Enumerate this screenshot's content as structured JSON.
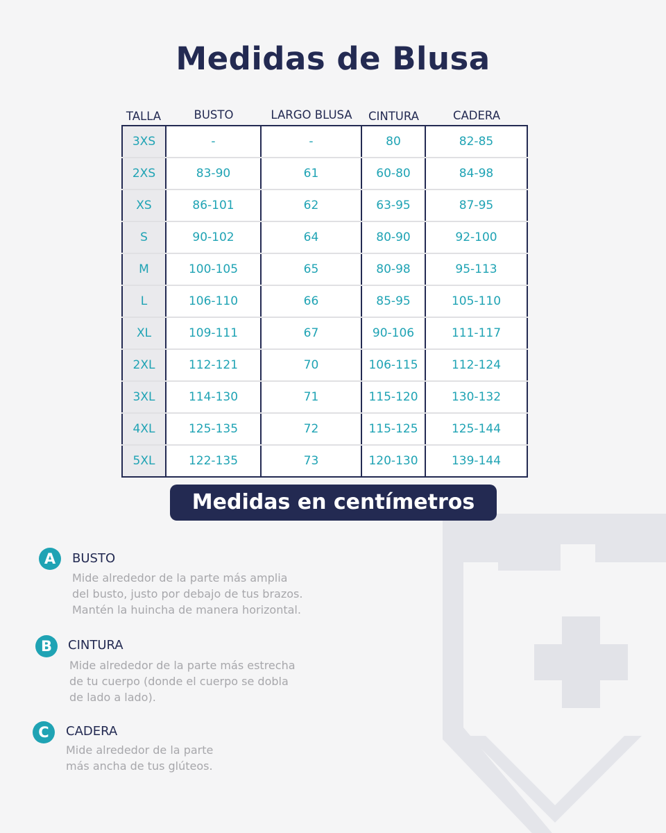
{
  "title": "Medidas de Blusa",
  "columns": [
    "TALLA",
    "BUSTO",
    "LARGO BLUSA",
    "CINTURA",
    "CADERA"
  ],
  "rows": [
    [
      "3XS",
      "-",
      "-",
      "80",
      "82-85"
    ],
    [
      "2XS",
      "83-90",
      "61",
      "60-80",
      "84-98"
    ],
    [
      "XS",
      "86-101",
      "62",
      "63-95",
      "87-95"
    ],
    [
      "S",
      "90-102",
      "64",
      "80-90",
      "92-100"
    ],
    [
      "M",
      "100-105",
      "65",
      "80-98",
      "95-113"
    ],
    [
      "L",
      "106-110",
      "66",
      "85-95",
      "105-110"
    ],
    [
      "XL",
      "109-111",
      "67",
      "90-106",
      "111-117"
    ],
    [
      "2XL",
      "112-121",
      "70",
      "106-115",
      "112-124"
    ],
    [
      "3XL",
      "114-130",
      "71",
      "115-120",
      "130-132"
    ],
    [
      "4XL",
      "125-135",
      "72",
      "115-125",
      "125-144"
    ],
    [
      "5XL",
      "122-135",
      "73",
      "120-130",
      "139-144"
    ]
  ],
  "unit_label": "Medidas en centímetros",
  "measurements": [
    {
      "letter": "A",
      "title": "BUSTO",
      "lines": [
        "Mide alrededor de la parte más amplia",
        "del busto, justo por debajo de tus brazos.",
        "Mantén la huincha de manera horizontal."
      ]
    },
    {
      "letter": "B",
      "title": "CINTURA",
      "lines": [
        "Mide alrededor de la parte más estrecha",
        "de tu cuerpo (donde el cuerpo se dobla",
        "de lado a lado)."
      ]
    },
    {
      "letter": "C",
      "title": "CADERA",
      "lines": [
        "Mide alrededor de la parte",
        "más ancha de tus glúteos."
      ]
    }
  ],
  "colors": {
    "navy": "#232a52",
    "teal": "#1fa3b4",
    "background": "#f5f5f6",
    "muted_text": "#a7a7ab",
    "watermark": "#e2e3e8"
  },
  "watermark_icon": "shield-cross-icon"
}
